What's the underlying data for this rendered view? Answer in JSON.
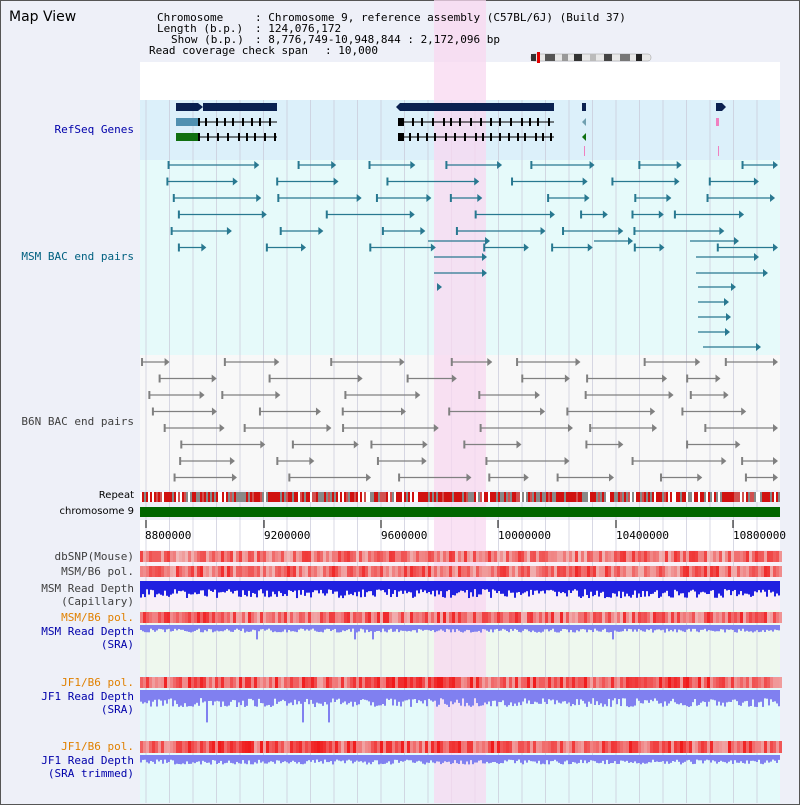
{
  "window": {
    "title": "Map View"
  },
  "header": {
    "chromosome_label": "Chromosome",
    "chromosome_value": ": Chromosome 9, reference assembly (C57BL/6J) (Build 37)",
    "length_label": "Length (b.p.)",
    "length_value": ": 124,076,172",
    "show_label": "Show (b.p.)",
    "show_value": ": 8,776,749-10,948,844 : 2,172,096 bp",
    "coverage_label": "Read coverage check span",
    "coverage_value": ": 10,000"
  },
  "tracks": {
    "refseq": "RefSeq Genes",
    "msm_bac": "MSM BAC end pairs",
    "b6n_bac": "B6N BAC end pairs",
    "repeat": "Repeat",
    "chromosome": "chromosome 9",
    "dbsnp": "dbSNP(Mouse)",
    "msm_b6_pol_1": "MSM/B6 pol.",
    "msm_read_depth_cap_1": "MSM Read Depth",
    "msm_read_depth_cap_2": "(Capillary)",
    "msm_b6_pol_2": "MSM/B6 pol.",
    "msm_read_depth_sra_1": "MSM Read Depth",
    "msm_read_depth_sra_2": "(SRA)",
    "jf1_b6_pol_1": "JF1/B6 pol.",
    "jf1_read_depth_sra_1": "JF1 Read Depth",
    "jf1_read_depth_sra_2": "(SRA)",
    "jf1_b6_pol_2": "JF1/B6 pol.",
    "jf1_read_depth_trim_1": "JF1 Read Depth",
    "jf1_read_depth_trim_2": "(SRA trimmed)"
  },
  "axis": {
    "ticks": [
      "8800000",
      "9200000",
      "9600000",
      "10000000",
      "10400000",
      "10800000"
    ]
  },
  "colors": {
    "highlight": "#f8d8f0",
    "refseq_bg": "#dcf0fa",
    "msm_bg": "#e6fafa",
    "b6n_bg": "#f8f8f8",
    "gene_dark": "#0a2050",
    "gene_teal": "#5090b0",
    "gene_green": "#107010",
    "bac_teal": "#287890",
    "bac_gray": "#808080",
    "repeat_red": "#d01010",
    "chrom_green": "#006600",
    "depth_blue": "#2020e0",
    "depth_light": "#8080f0",
    "label_blue": "#0000aa",
    "label_teal": "#006080",
    "label_orange": "#e08000",
    "label_dark": "#404040"
  }
}
